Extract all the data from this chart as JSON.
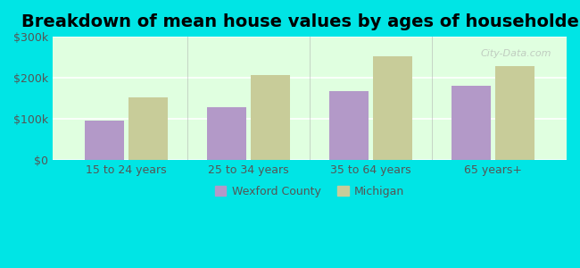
{
  "title": "Breakdown of mean house values by ages of householders",
  "categories": [
    "15 to 24 years",
    "25 to 34 years",
    "35 to 64 years",
    "65 years+"
  ],
  "wexford_values": [
    97000,
    130000,
    168000,
    182000
  ],
  "michigan_values": [
    152000,
    207000,
    252000,
    228000
  ],
  "wexford_color": "#b399c8",
  "michigan_color": "#c8cc99",
  "ylim": [
    0,
    300000
  ],
  "yticks": [
    0,
    100000,
    200000,
    300000
  ],
  "ytick_labels": [
    "$0",
    "$100k",
    "$200k",
    "$300k"
  ],
  "background_color": "#e0ffe0",
  "outer_background": "#00e5e5",
  "title_fontsize": 14,
  "legend_labels": [
    "Wexford County",
    "Michigan"
  ],
  "watermark": "City-Data.com"
}
